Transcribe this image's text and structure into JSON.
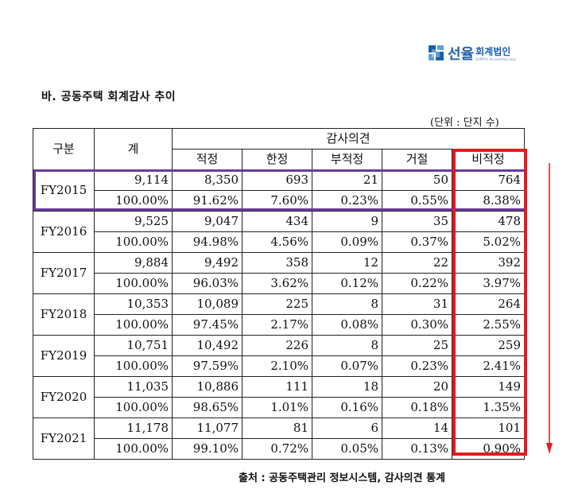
{
  "logo": {
    "name_main": "선율",
    "name_sub": "회계법인",
    "name_en": "SUNYUL Accounting Corp.",
    "icon": "sunyul-logo-icon"
  },
  "section_title": "바. 공동주택 회계감사 추이",
  "unit_note": "(단위 : 단지 수)",
  "table": {
    "headers": {
      "category": "구분",
      "total": "계",
      "opinion_group": "감사의견",
      "opinions": [
        "적정",
        "한정",
        "부적정",
        "거절",
        "비적정"
      ]
    },
    "rows": [
      {
        "year": "FY2015",
        "counts": [
          "9,114",
          "8,350",
          "693",
          "21",
          "50",
          "764"
        ],
        "ratios": [
          "100.00%",
          "91.62%",
          "7.60%",
          "0.23%",
          "0.55%",
          "8.38%"
        ]
      },
      {
        "year": "FY2016",
        "counts": [
          "9,525",
          "9,047",
          "434",
          "9",
          "35",
          "478"
        ],
        "ratios": [
          "100.00%",
          "94.98%",
          "4.56%",
          "0.09%",
          "0.37%",
          "5.02%"
        ]
      },
      {
        "year": "FY2017",
        "counts": [
          "9,884",
          "9,492",
          "358",
          "12",
          "22",
          "392"
        ],
        "ratios": [
          "100.00%",
          "96.03%",
          "3.62%",
          "0.12%",
          "0.22%",
          "3.97%"
        ]
      },
      {
        "year": "FY2018",
        "counts": [
          "10,353",
          "10,089",
          "225",
          "8",
          "31",
          "264"
        ],
        "ratios": [
          "100.00%",
          "97.45%",
          "2.17%",
          "0.08%",
          "0.30%",
          "2.55%"
        ]
      },
      {
        "year": "FY2019",
        "counts": [
          "10,751",
          "10,492",
          "226",
          "8",
          "25",
          "259"
        ],
        "ratios": [
          "100.00%",
          "97.59%",
          "2.10%",
          "0.07%",
          "0.23%",
          "2.41%"
        ]
      },
      {
        "year": "FY2020",
        "counts": [
          "11,035",
          "10,886",
          "111",
          "18",
          "20",
          "149"
        ],
        "ratios": [
          "100.00%",
          "98.65%",
          "1.01%",
          "0.16%",
          "0.18%",
          "1.35%"
        ]
      },
      {
        "year": "FY2021",
        "counts": [
          "11,178",
          "11,077",
          "81",
          "6",
          "14",
          "101"
        ],
        "ratios": [
          "100.00%",
          "99.10%",
          "0.72%",
          "0.05%",
          "0.13%",
          "0.90%"
        ]
      }
    ]
  },
  "source": "출처 : 공동주택관리 정보시스템, 감사의견 통계",
  "annotations": {
    "highlight_row_color": "#6a3aa0",
    "highlight_column_color": "#e31b1b",
    "arrow_color": "#e31b1b",
    "arrow_direction": "down"
  }
}
